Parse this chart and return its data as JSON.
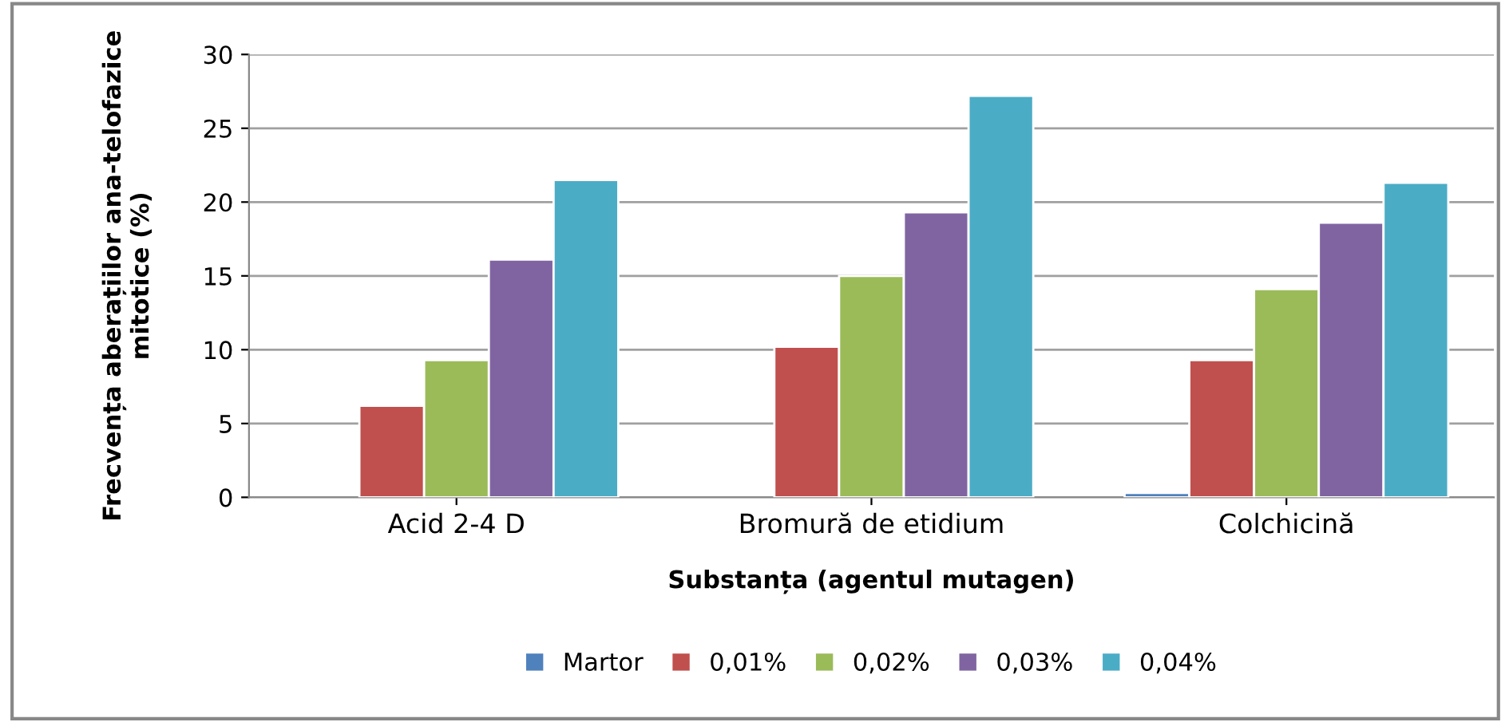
{
  "chart_data": {
    "type": "bar",
    "xlabel": "Substanța (agentul mutagen)",
    "ylabel": "Frecvența aberațiilor ana-telofazice\nmitotice (%)",
    "categories": [
      "Acid 2-4 D",
      "Bromură de etidium",
      "Colchicină"
    ],
    "series": [
      {
        "name": "Martor",
        "color": "#4f81bd",
        "values": [
          null,
          null,
          0.3
        ]
      },
      {
        "name": "0,01%",
        "color": "#c0504d",
        "values": [
          6.2,
          10.2,
          9.3
        ]
      },
      {
        "name": "0,02%",
        "color": "#9bbb59",
        "values": [
          9.3,
          15.0,
          14.1
        ]
      },
      {
        "name": "0,03%",
        "color": "#8064a2",
        "values": [
          16.1,
          19.3,
          18.6
        ]
      },
      {
        "name": "0,04%",
        "color": "#4bacc6",
        "values": [
          21.5,
          27.2,
          21.3
        ]
      }
    ],
    "ylim": [
      0,
      30
    ],
    "yticks": [
      0,
      5,
      10,
      15,
      20,
      25,
      30
    ],
    "grid": "y",
    "legend": "bottom"
  }
}
